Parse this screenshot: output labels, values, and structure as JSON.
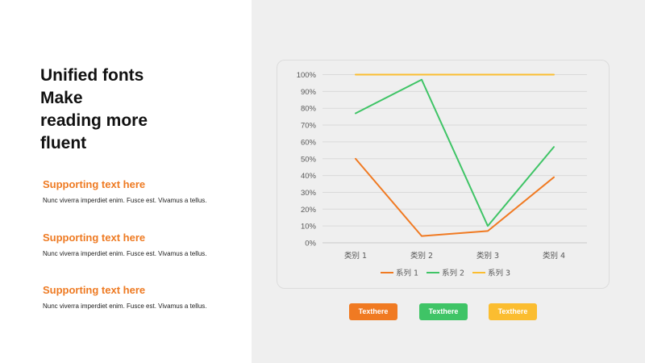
{
  "headline": [
    "Unified fonts",
    "Make",
    "reading more",
    "fluent"
  ],
  "supports": [
    {
      "title": "Supporting text here",
      "body": "Nunc viverra imperdiet enim. Fusce est. Vivamus a tellus."
    },
    {
      "title": "Supporting text here",
      "body": "Nunc viverra imperdiet enim. Fusce est. Vivamus a tellus."
    },
    {
      "title": "Supporting text here",
      "body": "Nunc viverra imperdiet enim. Fusce est. Vivamus a tellus."
    }
  ],
  "buttons": [
    {
      "label": "Texthere",
      "color": "#f07a22"
    },
    {
      "label": "Texthere",
      "color": "#3fc466"
    },
    {
      "label": "Texthere",
      "color": "#fbbd30"
    }
  ],
  "chart_data": {
    "type": "line",
    "categories": [
      "类别 1",
      "类别 2",
      "类别 3",
      "类别 4"
    ],
    "series": [
      {
        "name": "系列 1",
        "color": "#f07a22",
        "values": [
          0.5,
          0.04,
          0.07,
          0.39
        ]
      },
      {
        "name": "系列 2",
        "color": "#3fc466",
        "values": [
          0.77,
          0.97,
          0.1,
          0.57
        ]
      },
      {
        "name": "系列 3",
        "color": "#fbbd30",
        "values": [
          1.0,
          1.0,
          1.0,
          1.0
        ]
      }
    ],
    "yticks": [
      "0%",
      "10%",
      "20%",
      "30%",
      "40%",
      "50%",
      "60%",
      "70%",
      "80%",
      "90%",
      "100%"
    ],
    "ylim": [
      0,
      1
    ],
    "grid": true,
    "legend": "bottom"
  }
}
